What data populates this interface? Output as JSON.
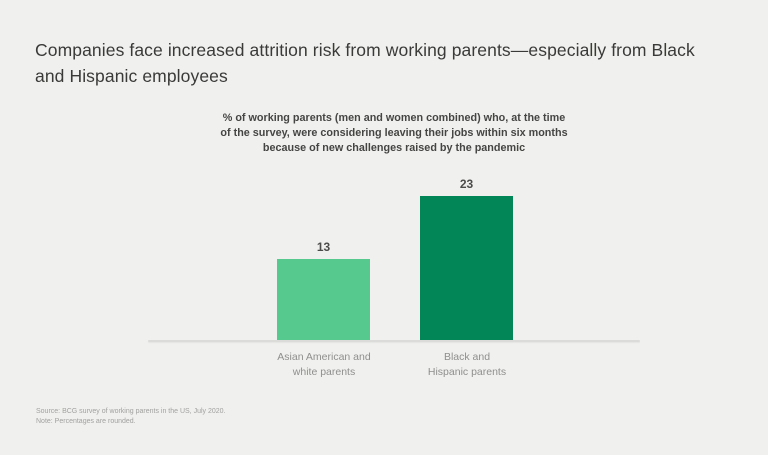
{
  "page": {
    "background_color": "#f0f0ee"
  },
  "title": "Companies face increased attrition risk from working parents—especially from Black and Hispanic employees",
  "chart_data": {
    "type": "bar",
    "title": "% of working parents (men and women combined) who, at the time of the survey, were considering leaving their jobs within six months because of new challenges raised by the pandemic",
    "title_lines": [
      "% of working parents (men and women combined) who, at the time",
      "of the survey, were considering leaving their jobs within six months",
      "because of new challenges raised by the pandemic"
    ],
    "categories": [
      {
        "line1": "Asian American and",
        "line2": "white parents"
      },
      {
        "line1": "Black and",
        "line2": "Hispanic parents"
      }
    ],
    "values": [
      13,
      23
    ],
    "bar_colors": [
      "#56c98e",
      "#028557"
    ],
    "axis_line_color": "#dbdbd9",
    "ylim": [
      0,
      25
    ],
    "grid": false,
    "legend": false,
    "xlabel": "",
    "ylabel": ""
  },
  "footnotes": {
    "source": "Source: BCG survey of working parents in the US, July 2020.",
    "note": "Note: Percentages are rounded."
  },
  "colors": {
    "title_text": "#3a3a38",
    "subtitle_text": "#454543",
    "value_label_text": "#4c4c4a",
    "category_label_text": "#8f8f8d",
    "footnote_text": "#a1a19f"
  }
}
